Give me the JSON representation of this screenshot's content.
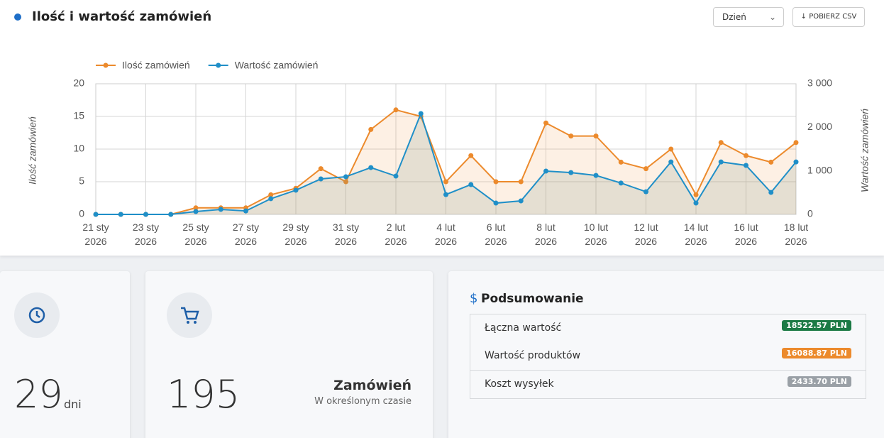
{
  "chart_data": {
    "type": "line",
    "title": "Ilość i wartość zamówień",
    "y_label": "Ilość zamówień",
    "y2_label": "Wartość zamówień",
    "categories": [
      "21 sty 2026",
      null,
      "23 sty 2026",
      null,
      "25 sty 2026",
      null,
      "27 sty 2026",
      null,
      "29 sty 2026",
      null,
      "31 sty 2026",
      null,
      "2 lut 2026",
      null,
      "4 lut 2026",
      null,
      "6 lut 2026",
      null,
      "8 lut 2026",
      null,
      "10 lut 2026",
      null,
      "12 lut 2026",
      null,
      "14 lut 2026",
      null,
      "16 lut 2026",
      null,
      "18 lut 2026"
    ],
    "series": [
      {
        "name": "Ilość zamówień",
        "color": "#ec8a2c",
        "values": [
          0,
          0,
          0,
          0,
          1,
          1,
          1,
          3,
          4,
          7,
          5,
          13,
          16,
          15,
          5,
          9,
          5,
          5,
          14,
          12,
          12,
          8,
          7,
          10,
          3,
          11,
          9,
          8,
          11
        ]
      },
      {
        "name": "Wartość zamówień",
        "color": "#1f8fc8",
        "axis": "y2",
        "values": [
          0,
          0,
          0,
          0,
          65,
          115,
          80,
          360,
          555,
          815,
          865,
          1075,
          880,
          2315,
          455,
          685,
          260,
          310,
          995,
          960,
          895,
          720,
          520,
          1205,
          260,
          1205,
          1125,
          505,
          1205
        ]
      }
    ],
    "ylim": [
      0,
      20
    ],
    "yticks": [
      0,
      5,
      10,
      15,
      20
    ],
    "y2lim": [
      0,
      3000
    ],
    "y2ticks": [
      0,
      {
        "value": 1000,
        "label": "1 000"
      },
      {
        "value": 2000,
        "label": "2 000"
      },
      {
        "value": 3000,
        "label": "3 000"
      }
    ],
    "grid": true,
    "legend": "top-left"
  },
  "controls": {
    "period": "Dzień",
    "download": "POBIERZ CSV"
  },
  "cards": [
    {
      "value": 29,
      "unit": "dni"
    },
    {
      "value": 195,
      "label": "Zamówień",
      "sublabel": "W określonym czasie"
    }
  ],
  "summary": {
    "title": "Podsumowanie",
    "rows": [
      {
        "label": "Łączna wartość",
        "value": "18522.57 PLN",
        "color": "#1b7a45"
      },
      {
        "label": "Wartość produktów",
        "value": "16088.87 PLN",
        "color": "#ec8a2c"
      },
      {
        "label": "Koszt wysyłek",
        "value": "2433.70 PLN",
        "color": "#9aa0a6"
      }
    ]
  }
}
